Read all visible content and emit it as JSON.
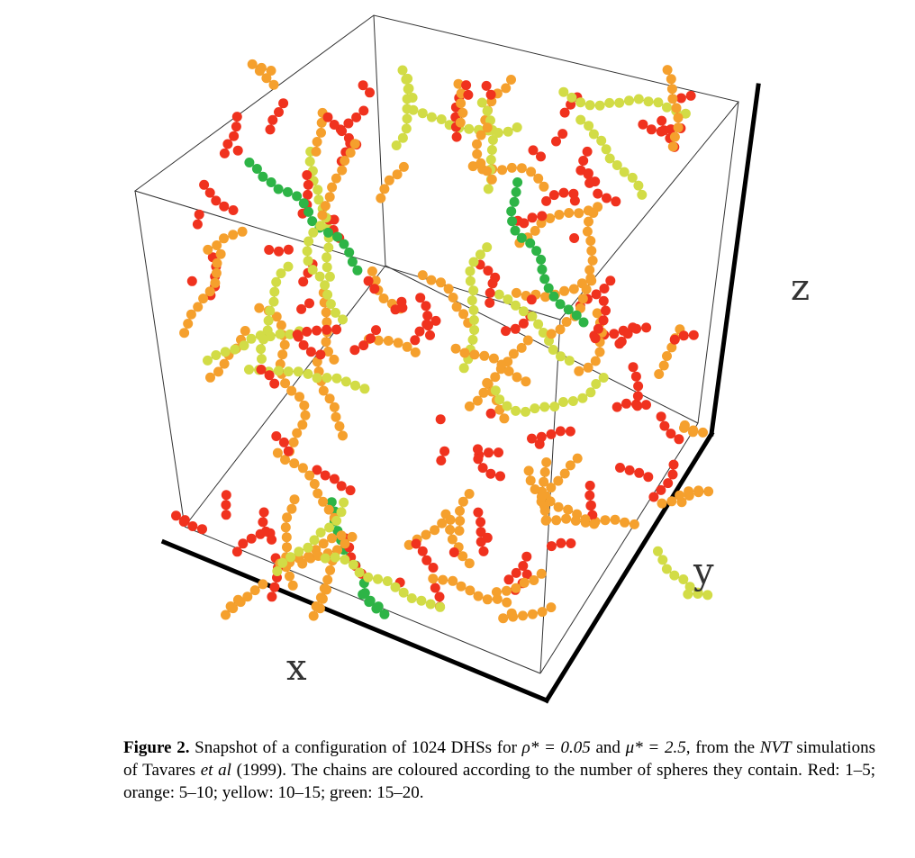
{
  "figure": {
    "axis_labels": {
      "x": "x",
      "y": "y",
      "z": "z"
    },
    "colors": {
      "red": "#f0321e",
      "orange": "#f5a02d",
      "yellow": "#d2dc46",
      "green": "#2db446",
      "box_line": "#333333",
      "axis_line": "#000000"
    }
  },
  "caption": {
    "label": "Figure 2.",
    "text_1": " Snapshot of a configuration of 1024 DHSs for ",
    "rho_symbol": "ρ* = 0.05",
    "text_2": " and ",
    "mu_symbol": "μ* = 2.5",
    "text_3": ", from the ",
    "ensemble": "NVT",
    "text_4": " simulations of Tavares ",
    "etal": "et al",
    "text_5": " (1999).  The chains are coloured according to the number of spheres they contain. Red: 1–5; orange: 5–10; yellow: 10–15; green: 15–20."
  }
}
